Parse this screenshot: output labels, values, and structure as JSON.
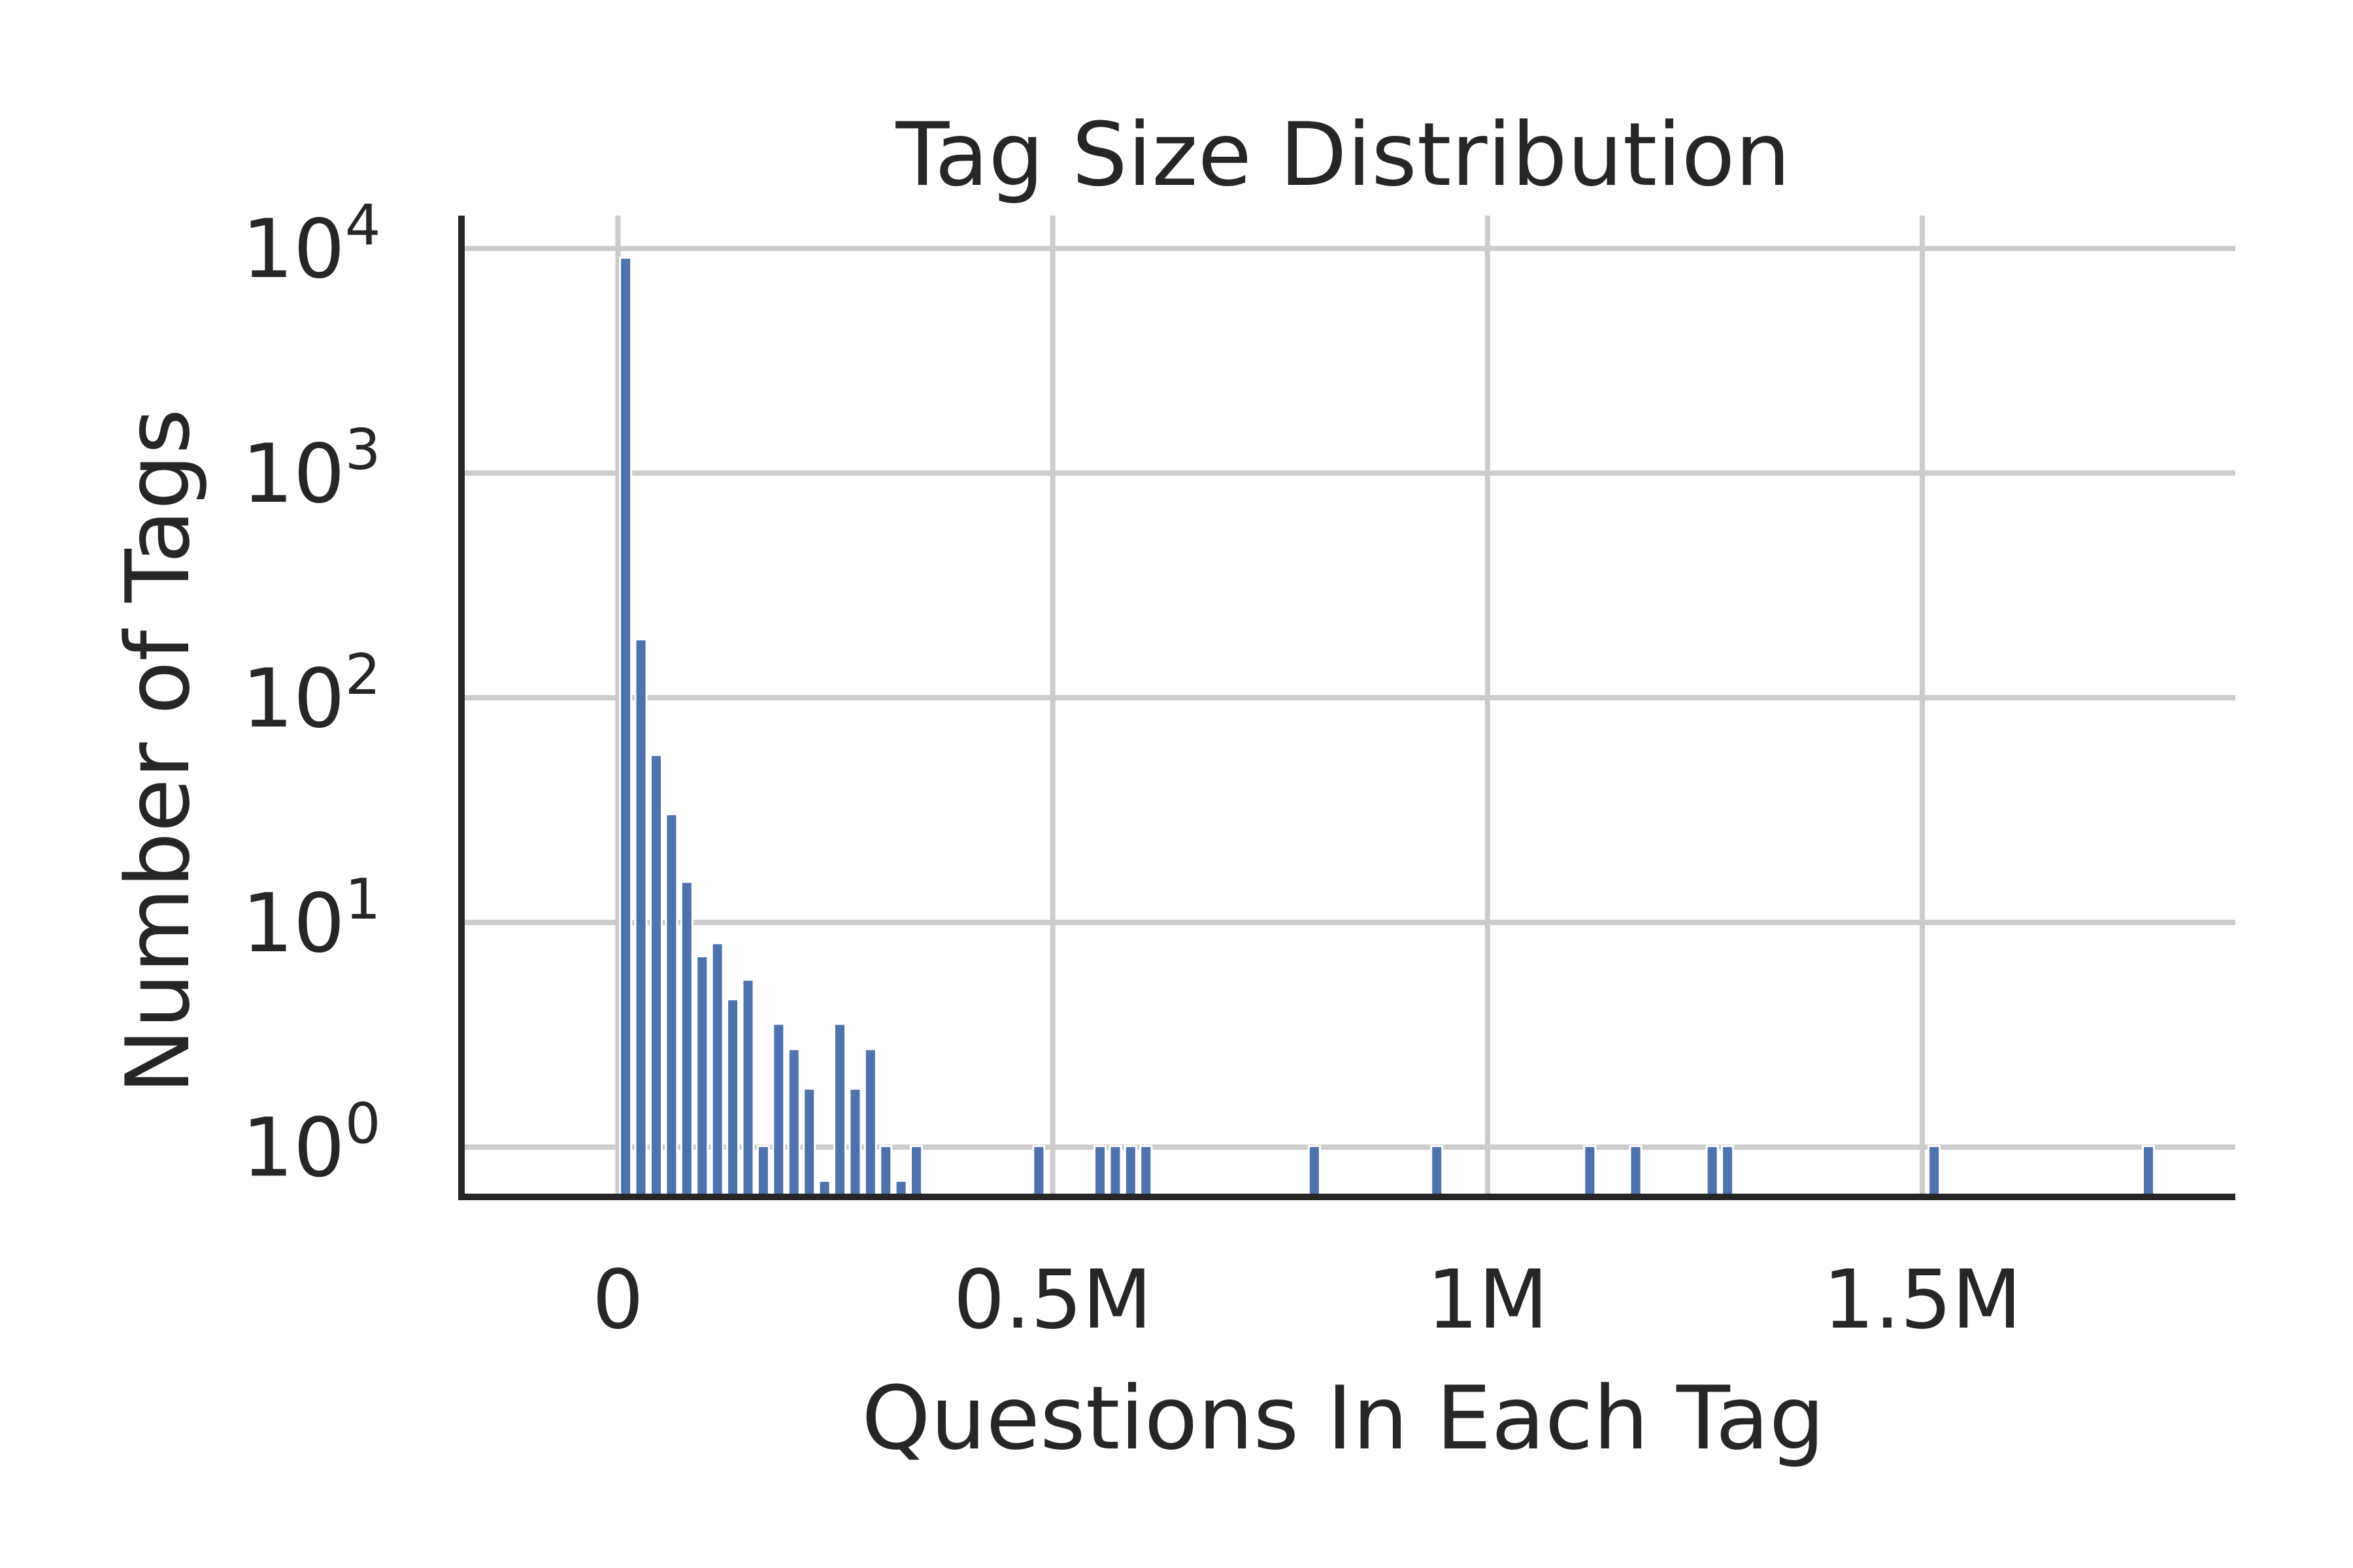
{
  "chart_data": {
    "type": "bar",
    "title": "Tag Size Distribution",
    "xlabel": "Questions In Each Tag",
    "ylabel": "Number of Tags",
    "x_scale": "linear",
    "y_scale": "log",
    "xlim": [
      -180000,
      1860000
    ],
    "ylim": [
      0.6,
      14000
    ],
    "x_ticks": [
      0,
      500000,
      1000000,
      1500000
    ],
    "x_tick_labels": [
      "0",
      "0.5M",
      "1M",
      "1.5M"
    ],
    "y_ticks": [
      1,
      10,
      100,
      1000,
      10000
    ],
    "y_tick_labels": [
      {
        "base": "10",
        "exp": "0"
      },
      {
        "base": "10",
        "exp": "1"
      },
      {
        "base": "10",
        "exp": "2"
      },
      {
        "base": "10",
        "exp": "3"
      },
      {
        "base": "10",
        "exp": "4"
      }
    ],
    "grid": true,
    "bar_color": "#4c72b0",
    "bars": [
      {
        "x": 8800,
        "y": 9000
      },
      {
        "x": 26400,
        "y": 180
      },
      {
        "x": 44000,
        "y": 55
      },
      {
        "x": 61600,
        "y": 30
      },
      {
        "x": 79200,
        "y": 15
      },
      {
        "x": 96800,
        "y": 7
      },
      {
        "x": 114400,
        "y": 8
      },
      {
        "x": 132000,
        "y": 4.5
      },
      {
        "x": 149600,
        "y": 5.5
      },
      {
        "x": 167200,
        "y": 1
      },
      {
        "x": 184800,
        "y": 3.5
      },
      {
        "x": 202400,
        "y": 2.7
      },
      {
        "x": 220000,
        "y": 1.8
      },
      {
        "x": 237600,
        "y": 0.7
      },
      {
        "x": 255200,
        "y": 3.5
      },
      {
        "x": 272800,
        "y": 1.8
      },
      {
        "x": 290400,
        "y": 2.7
      },
      {
        "x": 308000,
        "y": 1
      },
      {
        "x": 325600,
        "y": 0.7
      },
      {
        "x": 343200,
        "y": 1
      },
      {
        "x": 484000,
        "y": 1
      },
      {
        "x": 554400,
        "y": 1
      },
      {
        "x": 572000,
        "y": 1
      },
      {
        "x": 589600,
        "y": 1
      },
      {
        "x": 607200,
        "y": 1
      },
      {
        "x": 800800,
        "y": 1
      },
      {
        "x": 941600,
        "y": 1
      },
      {
        "x": 1117600,
        "y": 1
      },
      {
        "x": 1170400,
        "y": 1
      },
      {
        "x": 1258400,
        "y": 1
      },
      {
        "x": 1276000,
        "y": 1
      },
      {
        "x": 1513600,
        "y": 1
      },
      {
        "x": 1760000,
        "y": 1
      }
    ]
  }
}
